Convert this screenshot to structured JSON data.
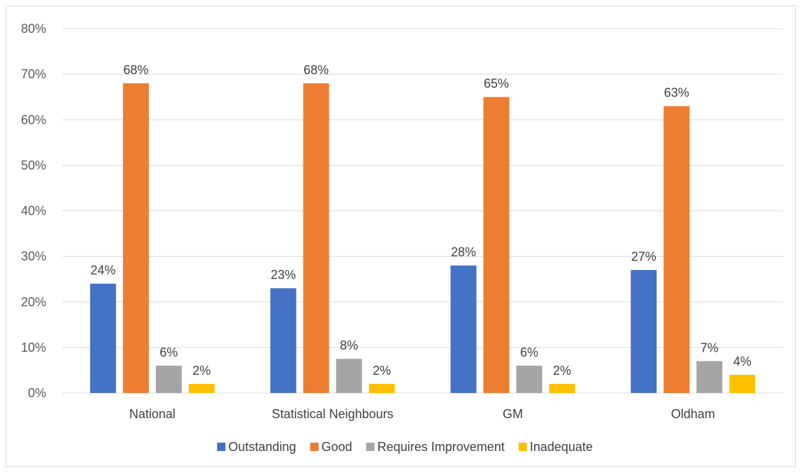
{
  "chart_data": {
    "type": "bar",
    "categories": [
      "National",
      "Statistical Neighbours",
      "GM",
      "Oldham"
    ],
    "series": [
      {
        "name": "Outstanding",
        "color": "#4472c4",
        "values": [
          24,
          23,
          28,
          27
        ],
        "labels": [
          "24%",
          "23%",
          "28%",
          "27%"
        ]
      },
      {
        "name": "Good",
        "color": "#ed7d31",
        "values": [
          68,
          68,
          65,
          63
        ],
        "labels": [
          "68%",
          "68%",
          "65%",
          "63%"
        ]
      },
      {
        "name": "Requires Improvement",
        "color": "#a5a5a5",
        "values": [
          6,
          7.5,
          6,
          7
        ],
        "labels": [
          "6%",
          "8%",
          "6%",
          "7%"
        ]
      },
      {
        "name": "Inadequate",
        "color": "#ffc000",
        "values": [
          2,
          2,
          2,
          4
        ],
        "labels": [
          "2%",
          "2%",
          "2%",
          "4%"
        ]
      }
    ],
    "ylim": [
      0,
      80
    ],
    "yticks": [
      {
        "value": 0,
        "label": "0%"
      },
      {
        "value": 10,
        "label": "10%"
      },
      {
        "value": 20,
        "label": "20%"
      },
      {
        "value": 30,
        "label": "30%"
      },
      {
        "value": 40,
        "label": "40%"
      },
      {
        "value": 50,
        "label": "50%"
      },
      {
        "value": 60,
        "label": "60%"
      },
      {
        "value": 70,
        "label": "70%"
      },
      {
        "value": 80,
        "label": "80%"
      }
    ],
    "grid": true,
    "legend": "bottom",
    "gridline_color": "#d9d9d9"
  }
}
